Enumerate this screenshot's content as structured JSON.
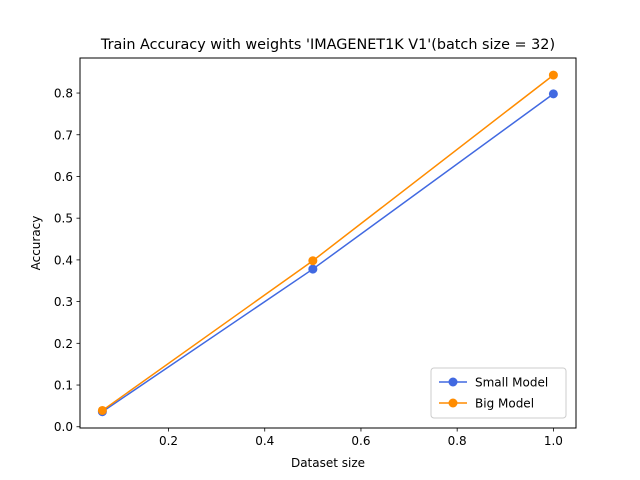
{
  "chart_data": {
    "type": "line",
    "title": "Train Accuracy with weights 'IMAGENET1K V1'(batch size = 32)",
    "xlabel": "Dataset size",
    "ylabel": "Accuracy",
    "xlim": [
      0.016,
      1.047
    ],
    "ylim": [
      -0.003,
      0.884
    ],
    "xticks": [
      0.2,
      0.4,
      0.6,
      0.8,
      1.0
    ],
    "xtick_labels": [
      "0.2",
      "0.4",
      "0.6",
      "0.8",
      "1.0"
    ],
    "yticks": [
      0.0,
      0.1,
      0.2,
      0.3,
      0.4,
      0.5,
      0.6,
      0.7,
      0.8
    ],
    "ytick_labels": [
      "0.0",
      "0.1",
      "0.2",
      "0.3",
      "0.4",
      "0.5",
      "0.6",
      "0.7",
      "0.8"
    ],
    "grid": false,
    "legend_position": "lower-right",
    "series": [
      {
        "name": "Small Model",
        "color": "#4169e1",
        "x": [
          0.0625,
          0.5,
          1.0
        ],
        "y": [
          0.036,
          0.378,
          0.798
        ]
      },
      {
        "name": "Big Model",
        "color": "#ff8c00",
        "x": [
          0.0625,
          0.5,
          1.0
        ],
        "y": [
          0.039,
          0.398,
          0.843
        ]
      }
    ]
  }
}
